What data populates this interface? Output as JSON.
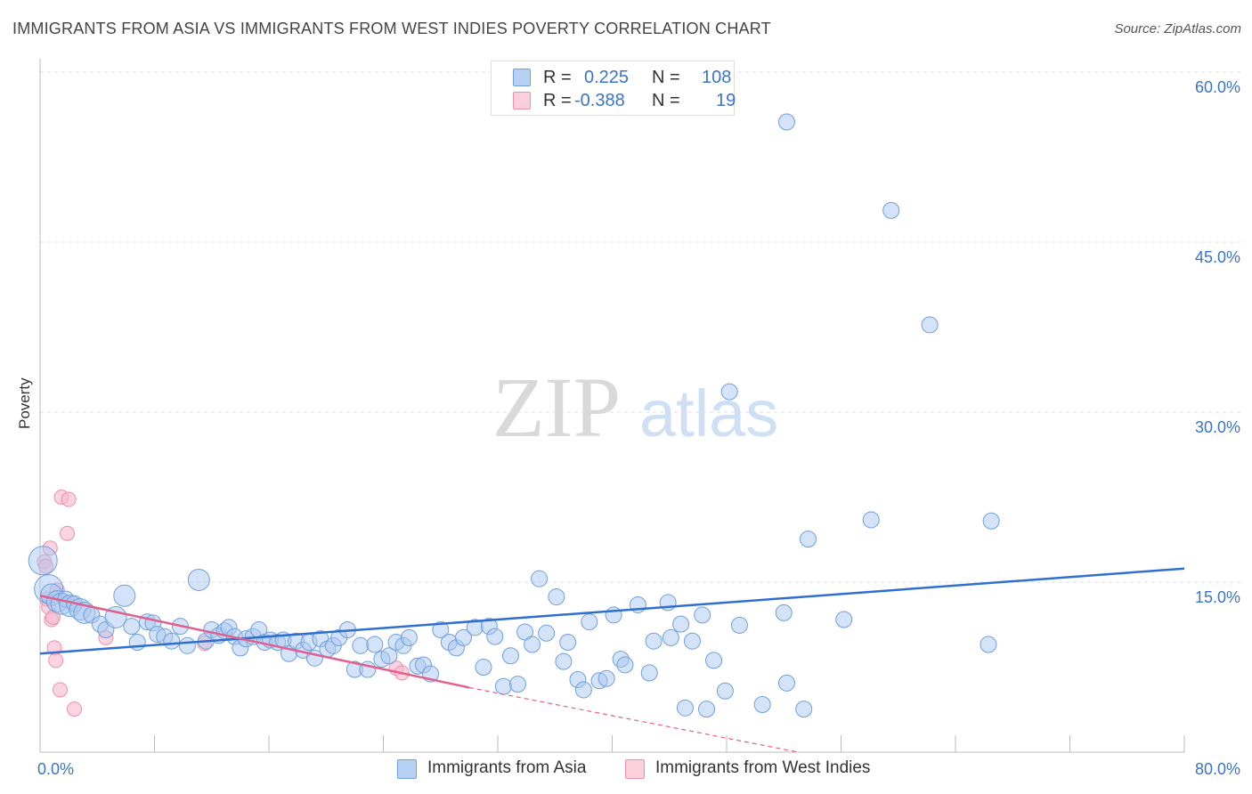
{
  "title": "IMMIGRANTS FROM ASIA VS IMMIGRANTS FROM WEST INDIES POVERTY CORRELATION CHART",
  "source": "Source: ZipAtlas.com",
  "watermark": {
    "zip": "ZIP",
    "atlas": "atlas"
  },
  "legend": {
    "rows": [
      {
        "r_label": "R =",
        "r_value": "0.225",
        "n_label": "N =",
        "n_value": "108"
      },
      {
        "r_label": "R =",
        "r_value": "-0.388",
        "n_label": "N =",
        "n_value": "19"
      }
    ]
  },
  "colors": {
    "asia_fill": "#a9c8f0",
    "asia_stroke": "#6f9fdc",
    "asia_line": "#2f6fd0",
    "wi_fill": "#f7b8cb",
    "wi_stroke": "#ec8fac",
    "wi_line": "#e0608e",
    "grid": "#dddddd",
    "tick_text": "#3b73c8"
  },
  "chart_data": {
    "type": "scatter",
    "title": "IMMIGRANTS FROM ASIA VS IMMIGRANTS FROM WEST INDIES POVERTY CORRELATION CHART",
    "xlabel": "",
    "ylabel": "Poverty",
    "xlim": [
      0,
      80
    ],
    "ylim": [
      0,
      60
    ],
    "x_tick_labels": [
      "0.0%",
      "80.0%"
    ],
    "y_ticks": [
      15,
      30,
      45,
      60
    ],
    "y_tick_labels": [
      "15.0%",
      "30.0%",
      "45.0%",
      "60.0%"
    ],
    "grid": true,
    "legend_position": "top-center",
    "series": [
      {
        "name": "Immigrants from Asia",
        "r": 0.225,
        "n": 108,
        "trend": {
          "x": [
            0,
            80
          ],
          "y": [
            8.7,
            16.2
          ]
        },
        "points": [
          {
            "x": 0.2,
            "y": 16.9,
            "s": 3
          },
          {
            "x": 0.6,
            "y": 14.4,
            "s": 3
          },
          {
            "x": 0.8,
            "y": 13.9,
            "s": 2
          },
          {
            "x": 1.2,
            "y": 13.3,
            "s": 2
          },
          {
            "x": 1.5,
            "y": 13.1,
            "s": 2
          },
          {
            "x": 1.8,
            "y": 13.5,
            "s": 1
          },
          {
            "x": 2.1,
            "y": 12.9,
            "s": 2
          },
          {
            "x": 2.4,
            "y": 13.1,
            "s": 1
          },
          {
            "x": 2.8,
            "y": 12.6,
            "s": 2
          },
          {
            "x": 3.1,
            "y": 12.3,
            "s": 2
          },
          {
            "x": 3.6,
            "y": 12.1,
            "s": 1
          },
          {
            "x": 4.2,
            "y": 11.3,
            "s": 1
          },
          {
            "x": 4.6,
            "y": 10.8,
            "s": 1
          },
          {
            "x": 5.3,
            "y": 11.9,
            "s": 2
          },
          {
            "x": 5.9,
            "y": 13.8,
            "s": 2
          },
          {
            "x": 6.4,
            "y": 11.1,
            "s": 1
          },
          {
            "x": 6.8,
            "y": 9.7,
            "s": 1
          },
          {
            "x": 7.5,
            "y": 11.5,
            "s": 1
          },
          {
            "x": 7.9,
            "y": 11.4,
            "s": 1
          },
          {
            "x": 8.2,
            "y": 10.4,
            "s": 1
          },
          {
            "x": 8.7,
            "y": 10.2,
            "s": 1
          },
          {
            "x": 9.2,
            "y": 9.8,
            "s": 1
          },
          {
            "x": 9.8,
            "y": 11.1,
            "s": 1
          },
          {
            "x": 10.3,
            "y": 9.4,
            "s": 1
          },
          {
            "x": 11.1,
            "y": 15.2,
            "s": 2
          },
          {
            "x": 11.6,
            "y": 9.8,
            "s": 1
          },
          {
            "x": 12.0,
            "y": 10.8,
            "s": 1
          },
          {
            "x": 12.5,
            "y": 10.3,
            "s": 1
          },
          {
            "x": 12.9,
            "y": 10.7,
            "s": 1
          },
          {
            "x": 13.2,
            "y": 11.0,
            "s": 1
          },
          {
            "x": 13.6,
            "y": 10.2,
            "s": 1
          },
          {
            "x": 14.0,
            "y": 9.2,
            "s": 1
          },
          {
            "x": 14.4,
            "y": 10.0,
            "s": 1
          },
          {
            "x": 14.9,
            "y": 10.2,
            "s": 1
          },
          {
            "x": 15.3,
            "y": 10.8,
            "s": 1
          },
          {
            "x": 15.7,
            "y": 9.7,
            "s": 1
          },
          {
            "x": 16.1,
            "y": 9.9,
            "s": 1
          },
          {
            "x": 16.6,
            "y": 9.7,
            "s": 1
          },
          {
            "x": 17.0,
            "y": 9.9,
            "s": 1
          },
          {
            "x": 17.4,
            "y": 8.7,
            "s": 1
          },
          {
            "x": 17.9,
            "y": 9.8,
            "s": 1
          },
          {
            "x": 18.4,
            "y": 9.0,
            "s": 1
          },
          {
            "x": 18.8,
            "y": 9.7,
            "s": 1
          },
          {
            "x": 19.2,
            "y": 8.3,
            "s": 1
          },
          {
            "x": 19.6,
            "y": 10.0,
            "s": 1
          },
          {
            "x": 20.1,
            "y": 9.1,
            "s": 1
          },
          {
            "x": 20.5,
            "y": 9.4,
            "s": 1
          },
          {
            "x": 20.9,
            "y": 10.1,
            "s": 1
          },
          {
            "x": 21.5,
            "y": 10.8,
            "s": 1
          },
          {
            "x": 22.0,
            "y": 7.3,
            "s": 1
          },
          {
            "x": 22.4,
            "y": 9.4,
            "s": 1
          },
          {
            "x": 22.9,
            "y": 7.3,
            "s": 1
          },
          {
            "x": 23.4,
            "y": 9.5,
            "s": 1
          },
          {
            "x": 23.9,
            "y": 8.2,
            "s": 1
          },
          {
            "x": 24.4,
            "y": 8.5,
            "s": 1
          },
          {
            "x": 24.9,
            "y": 9.7,
            "s": 1
          },
          {
            "x": 25.4,
            "y": 9.4,
            "s": 1
          },
          {
            "x": 25.8,
            "y": 10.1,
            "s": 1
          },
          {
            "x": 26.4,
            "y": 7.6,
            "s": 1
          },
          {
            "x": 26.8,
            "y": 7.7,
            "s": 1
          },
          {
            "x": 27.3,
            "y": 6.9,
            "s": 1
          },
          {
            "x": 28.0,
            "y": 10.8,
            "s": 1
          },
          {
            "x": 28.6,
            "y": 9.7,
            "s": 1
          },
          {
            "x": 29.1,
            "y": 9.2,
            "s": 1
          },
          {
            "x": 29.6,
            "y": 10.1,
            "s": 1
          },
          {
            "x": 30.4,
            "y": 11.0,
            "s": 1
          },
          {
            "x": 31.0,
            "y": 7.5,
            "s": 1
          },
          {
            "x": 31.4,
            "y": 11.1,
            "s": 1
          },
          {
            "x": 31.8,
            "y": 10.2,
            "s": 1
          },
          {
            "x": 32.4,
            "y": 5.8,
            "s": 1
          },
          {
            "x": 32.9,
            "y": 8.5,
            "s": 1
          },
          {
            "x": 33.4,
            "y": 6.0,
            "s": 1
          },
          {
            "x": 33.9,
            "y": 10.6,
            "s": 1
          },
          {
            "x": 34.4,
            "y": 9.5,
            "s": 1
          },
          {
            "x": 34.9,
            "y": 15.3,
            "s": 1
          },
          {
            "x": 35.4,
            "y": 10.5,
            "s": 1
          },
          {
            "x": 36.1,
            "y": 13.7,
            "s": 1
          },
          {
            "x": 36.6,
            "y": 8.0,
            "s": 1
          },
          {
            "x": 36.9,
            "y": 9.7,
            "s": 1
          },
          {
            "x": 37.6,
            "y": 6.4,
            "s": 1
          },
          {
            "x": 38.0,
            "y": 5.5,
            "s": 1
          },
          {
            "x": 38.4,
            "y": 11.5,
            "s": 1
          },
          {
            "x": 39.1,
            "y": 6.3,
            "s": 1
          },
          {
            "x": 39.6,
            "y": 6.5,
            "s": 1
          },
          {
            "x": 40.1,
            "y": 12.1,
            "s": 1
          },
          {
            "x": 40.6,
            "y": 8.2,
            "s": 1
          },
          {
            "x": 40.9,
            "y": 7.7,
            "s": 1
          },
          {
            "x": 41.8,
            "y": 13.0,
            "s": 1
          },
          {
            "x": 42.6,
            "y": 7.0,
            "s": 1
          },
          {
            "x": 42.9,
            "y": 9.8,
            "s": 1
          },
          {
            "x": 43.9,
            "y": 13.2,
            "s": 1
          },
          {
            "x": 44.1,
            "y": 10.1,
            "s": 1
          },
          {
            "x": 44.8,
            "y": 11.3,
            "s": 1
          },
          {
            "x": 45.1,
            "y": 3.9,
            "s": 1
          },
          {
            "x": 45.6,
            "y": 9.8,
            "s": 1
          },
          {
            "x": 46.3,
            "y": 12.1,
            "s": 1
          },
          {
            "x": 46.6,
            "y": 3.8,
            "s": 1
          },
          {
            "x": 47.1,
            "y": 8.1,
            "s": 1
          },
          {
            "x": 47.9,
            "y": 5.4,
            "s": 1
          },
          {
            "x": 48.2,
            "y": 31.8,
            "s": 1
          },
          {
            "x": 48.9,
            "y": 11.2,
            "s": 1
          },
          {
            "x": 50.5,
            "y": 4.2,
            "s": 1
          },
          {
            "x": 52.0,
            "y": 12.3,
            "s": 1
          },
          {
            "x": 52.2,
            "y": 6.1,
            "s": 1
          },
          {
            "x": 53.4,
            "y": 3.8,
            "s": 1
          },
          {
            "x": 53.7,
            "y": 18.8,
            "s": 1
          },
          {
            "x": 56.2,
            "y": 11.7,
            "s": 1
          },
          {
            "x": 58.1,
            "y": 20.5,
            "s": 1
          },
          {
            "x": 59.5,
            "y": 47.8,
            "s": 1
          },
          {
            "x": 62.2,
            "y": 37.7,
            "s": 1
          },
          {
            "x": 66.5,
            "y": 20.4,
            "s": 1
          },
          {
            "x": 66.3,
            "y": 9.5,
            "s": 1
          },
          {
            "x": 52.2,
            "y": 55.6,
            "s": 1
          }
        ]
      },
      {
        "name": "Immigrants from West Indies",
        "r": -0.388,
        "n": 19,
        "trend": {
          "x": [
            0,
            30
          ],
          "y": [
            13.8,
            5.7
          ]
        },
        "trend_extension": {
          "x": [
            30,
            53
          ],
          "y": [
            5.7,
            -0.5
          ]
        },
        "points": [
          {
            "x": 0.3,
            "y": 16.8
          },
          {
            "x": 0.4,
            "y": 16.4
          },
          {
            "x": 0.5,
            "y": 13.5
          },
          {
            "x": 0.6,
            "y": 12.8
          },
          {
            "x": 0.7,
            "y": 18.0
          },
          {
            "x": 0.8,
            "y": 11.7
          },
          {
            "x": 0.9,
            "y": 11.9
          },
          {
            "x": 1.0,
            "y": 9.2
          },
          {
            "x": 1.1,
            "y": 8.1
          },
          {
            "x": 1.2,
            "y": 14.3
          },
          {
            "x": 1.4,
            "y": 5.5
          },
          {
            "x": 1.5,
            "y": 22.5
          },
          {
            "x": 1.9,
            "y": 19.3
          },
          {
            "x": 2.0,
            "y": 22.3
          },
          {
            "x": 2.4,
            "y": 3.8
          },
          {
            "x": 4.6,
            "y": 10.1
          },
          {
            "x": 11.5,
            "y": 9.6
          },
          {
            "x": 24.9,
            "y": 7.4
          },
          {
            "x": 25.3,
            "y": 7.0
          }
        ]
      }
    ]
  }
}
